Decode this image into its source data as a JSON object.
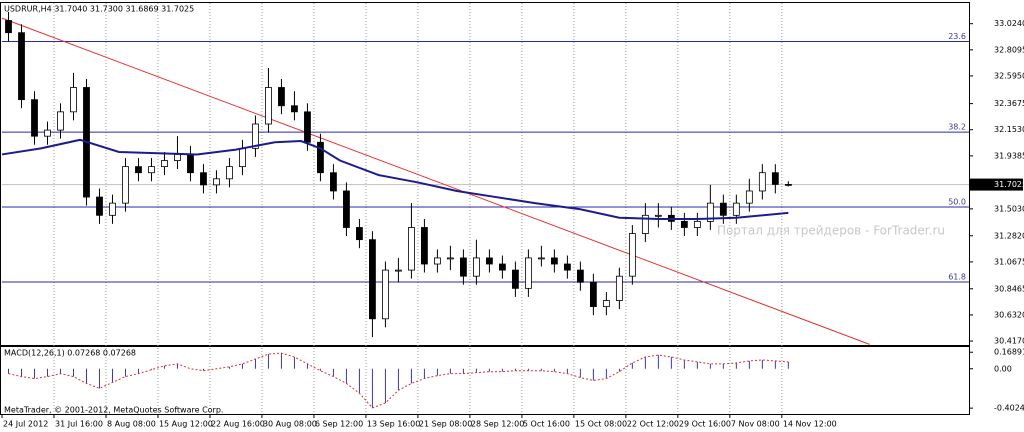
{
  "chart_data": [
    {
      "type": "candlestick",
      "title": "USDRUR,H4  31.7040 31.7300 31.6869 31.7025",
      "xlim": [
        0,
        148.8
      ],
      "xticks": [
        {
          "value": 0,
          "label": "24 Jul 2012"
        },
        {
          "value": 8,
          "label": "31 Jul 16:00"
        },
        {
          "value": 16,
          "label": "8 Aug 08:00"
        },
        {
          "value": 24,
          "label": "15 Aug 12:00"
        },
        {
          "value": 32,
          "label": "22 Aug 16:00"
        },
        {
          "value": 40,
          "label": "30 Aug 08:00"
        },
        {
          "value": 48,
          "label": "6 Sep 12:00"
        },
        {
          "value": 56,
          "label": "13 Sep 16:00"
        },
        {
          "value": 64,
          "label": "21 Sep 08:00"
        },
        {
          "value": 72,
          "label": "28 Sep 12:00"
        },
        {
          "value": 80,
          "label": "5 Oct 16:00"
        },
        {
          "value": 88,
          "label": "15 Oct 08:00"
        },
        {
          "value": 96,
          "label": "22 Oct 12:00"
        },
        {
          "value": 104,
          "label": "29 Oct 16:00"
        },
        {
          "value": 112,
          "label": "7 Nov 08:00"
        },
        {
          "value": 120,
          "label": "14 Nov 12:00"
        }
      ],
      "grid": "x",
      "ylim": [
        30.393,
        33.194
      ],
      "yticks": [
        {
          "value": 33.024,
          "label": "33.0240"
        },
        {
          "value": 32.8095,
          "label": "32.8095"
        },
        {
          "value": 32.595,
          "label": "32.5950"
        },
        {
          "value": 32.3675,
          "label": "32.3675"
        },
        {
          "value": 32.153,
          "label": "32.1530"
        },
        {
          "value": 31.9385,
          "label": "31.9385"
        },
        {
          "value": 31.503,
          "label": "31.5030"
        },
        {
          "value": 31.282,
          "label": "31.2820"
        },
        {
          "value": 31.0675,
          "label": "31.0675"
        },
        {
          "value": 30.8465,
          "label": "30.8465"
        },
        {
          "value": 30.632,
          "label": "30.6320"
        },
        {
          "value": 30.417,
          "label": "30.4170"
        }
      ],
      "price_marker": {
        "value": 31.7025,
        "label": "31.7025"
      },
      "x": [
        1,
        3,
        5,
        7,
        9,
        11,
        13,
        15,
        17,
        19,
        21,
        23,
        25,
        27,
        29,
        31,
        33,
        35,
        37,
        39,
        41,
        43,
        45,
        47,
        49,
        51,
        53,
        55,
        57,
        59,
        61,
        63,
        65,
        67,
        69,
        71,
        73,
        75,
        77,
        79,
        81,
        83,
        85,
        87,
        89,
        91,
        93,
        95,
        97,
        99,
        101,
        103,
        105,
        107,
        109,
        111,
        113,
        115,
        117,
        119,
        121
      ],
      "open": [
        33.05,
        32.95,
        32.4,
        32.1,
        32.15,
        32.3,
        32.5,
        31.6,
        31.45,
        31.55,
        31.85,
        31.8,
        31.85,
        31.9,
        31.95,
        31.8,
        31.7,
        31.75,
        31.85,
        32.0,
        32.2,
        32.5,
        32.35,
        32.3,
        32.05,
        31.8,
        31.65,
        31.35,
        31.25,
        30.6,
        31.0,
        31.0,
        31.35,
        31.05,
        31.1,
        31.1,
        30.95,
        31.1,
        31.05,
        31.0,
        30.85,
        31.1,
        31.1,
        31.05,
        31.0,
        30.9,
        30.7,
        30.75,
        30.95,
        31.3,
        31.45,
        31.45,
        31.4,
        31.35,
        31.4,
        31.55,
        31.45,
        31.55,
        31.65,
        31.8,
        31.704
      ],
      "high": [
        33.12,
        33.02,
        32.47,
        32.22,
        32.37,
        32.62,
        32.57,
        31.67,
        31.62,
        31.92,
        31.92,
        31.92,
        31.97,
        32.1,
        32.02,
        31.87,
        31.82,
        31.92,
        32.07,
        32.27,
        32.66,
        32.57,
        32.47,
        32.37,
        32.12,
        31.87,
        31.72,
        31.42,
        31.32,
        31.07,
        31.1,
        31.55,
        31.42,
        31.17,
        31.2,
        31.17,
        31.25,
        31.17,
        31.12,
        31.07,
        31.17,
        31.2,
        31.17,
        31.12,
        31.07,
        30.97,
        30.82,
        31.02,
        31.37,
        31.55,
        31.55,
        31.52,
        31.47,
        31.47,
        31.7,
        31.62,
        31.62,
        31.75,
        31.87,
        31.87,
        31.73
      ],
      "low": [
        32.88,
        32.33,
        32.03,
        32.03,
        32.08,
        32.23,
        31.53,
        31.38,
        31.38,
        31.48,
        31.73,
        31.73,
        31.78,
        31.83,
        31.73,
        31.63,
        31.63,
        31.68,
        31.78,
        31.93,
        32.13,
        32.28,
        32.23,
        31.98,
        31.73,
        31.58,
        31.28,
        31.18,
        30.45,
        30.53,
        30.9,
        30.93,
        30.98,
        30.98,
        31.0,
        30.88,
        30.88,
        30.98,
        30.93,
        30.78,
        30.78,
        31.03,
        30.98,
        30.93,
        30.83,
        30.63,
        30.63,
        30.68,
        30.88,
        31.23,
        31.35,
        31.33,
        31.28,
        31.28,
        31.33,
        31.38,
        31.38,
        31.48,
        31.58,
        31.63,
        31.6869
      ],
      "close": [
        32.95,
        32.4,
        32.1,
        32.15,
        32.3,
        32.5,
        31.6,
        31.45,
        31.55,
        31.85,
        31.8,
        31.85,
        31.9,
        31.95,
        31.8,
        31.7,
        31.75,
        31.85,
        32.0,
        32.2,
        32.5,
        32.35,
        32.3,
        32.05,
        31.8,
        31.65,
        31.35,
        31.25,
        30.6,
        31.0,
        31.0,
        31.35,
        31.05,
        31.1,
        31.1,
        30.95,
        31.1,
        31.05,
        31.0,
        30.85,
        31.1,
        31.1,
        31.05,
        31.0,
        30.9,
        30.7,
        30.75,
        30.95,
        31.3,
        31.45,
        31.45,
        31.4,
        31.35,
        31.4,
        31.55,
        31.45,
        31.55,
        31.65,
        31.8,
        31.704,
        31.7025
      ],
      "up_color": "#ffffff",
      "down_color": "#000000",
      "moving_average": {
        "color": "#1c1c8c",
        "x": [
          0,
          6,
          12,
          18,
          24,
          30,
          36,
          42,
          46,
          49,
          52,
          58,
          64,
          70,
          76,
          82,
          89,
          95,
          101,
          107,
          113,
          121
        ],
        "values": [
          31.95,
          32.0,
          32.07,
          31.97,
          31.96,
          31.95,
          31.99,
          32.05,
          32.06,
          32.0,
          31.9,
          31.78,
          31.72,
          31.65,
          31.6,
          31.55,
          31.5,
          31.43,
          31.42,
          31.42,
          31.43,
          31.47
        ]
      },
      "trendline": {
        "color": "#e83030",
        "x": [
          0,
          133.5
        ],
        "values": [
          33.07,
          30.39
        ]
      },
      "levels": {
        "color": "#2a2aa8",
        "items": [
          {
            "value": 32.878,
            "label": "23.6"
          },
          {
            "value": 32.133,
            "label": "38.2"
          },
          {
            "value": 31.518,
            "label": "50.0"
          },
          {
            "value": 30.902,
            "label": "61.8"
          }
        ]
      },
      "watermark": "Портал для трейдеров - ForTrader.ru"
    },
    {
      "type": "bar",
      "title": "MACD(12,26,1) 0.07268 0.07268",
      "xlim": [
        0,
        148.8
      ],
      "ylim": [
        -0.442,
        0.2019
      ],
      "yticks": [
        0.16891,
        {
          "value": 0,
          "label": "0.00"
        },
        -0.40241
      ],
      "color": "#3a3aa0",
      "signal_color": "#e03030",
      "x": [
        1,
        3,
        5,
        7,
        9,
        11,
        13,
        15,
        17,
        19,
        21,
        23,
        25,
        27,
        29,
        31,
        33,
        35,
        37,
        39,
        41,
        43,
        45,
        47,
        49,
        51,
        53,
        55,
        57,
        59,
        61,
        63,
        65,
        67,
        69,
        71,
        73,
        75,
        77,
        79,
        81,
        83,
        85,
        87,
        89,
        91,
        93,
        95,
        97,
        99,
        101,
        103,
        105,
        107,
        109,
        111,
        113,
        115,
        117,
        119,
        121
      ],
      "values": [
        -0.05,
        -0.08,
        -0.1,
        -0.08,
        -0.05,
        -0.08,
        -0.15,
        -0.2,
        -0.14,
        -0.08,
        -0.05,
        -0.01,
        0.03,
        0.05,
        0.0,
        -0.02,
        0.0,
        0.02,
        0.05,
        0.1,
        0.15,
        0.16,
        0.12,
        0.05,
        -0.02,
        -0.08,
        -0.15,
        -0.25,
        -0.4,
        -0.35,
        -0.22,
        -0.15,
        -0.1,
        -0.07,
        -0.05,
        -0.05,
        -0.04,
        -0.03,
        -0.03,
        -0.02,
        -0.02,
        -0.02,
        -0.03,
        -0.05,
        -0.09,
        -0.12,
        -0.1,
        -0.03,
        0.06,
        0.12,
        0.14,
        0.12,
        0.09,
        0.07,
        0.05,
        0.05,
        0.06,
        0.08,
        0.09,
        0.08,
        0.07
      ]
    }
  ],
  "footer": "MetaTrader, © 2001-2012, MetaQuotes Software Corp."
}
